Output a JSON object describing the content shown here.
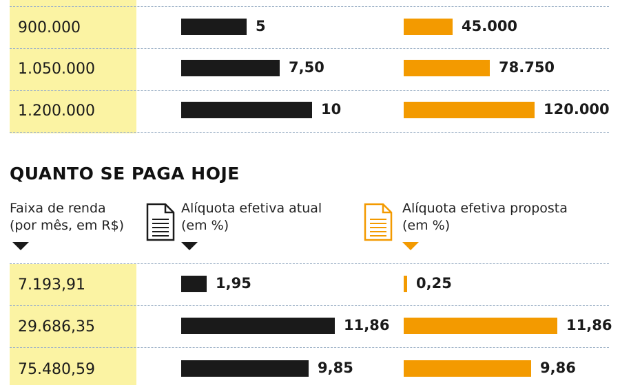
{
  "colors": {
    "atual": "#1a1a1a",
    "proposta": "#f39a00",
    "highlight": "#fbf3a3",
    "divider": "#9fb3c8"
  },
  "icons": {
    "atual": "document-icon",
    "proposta": "document-icon"
  },
  "chart_data": [
    {
      "type": "bar",
      "title": "",
      "columns": [
        "",
        "",
        ""
      ],
      "categories": [
        "900.000",
        "1.050.000",
        "1.200.000"
      ],
      "series": [
        {
          "values": [
            5,
            7.5,
            10
          ],
          "labels": [
            "5",
            "7,50",
            "10"
          ]
        },
        {
          "values": [
            45000,
            78750,
            120000
          ],
          "labels": [
            "45.000",
            "78.750",
            "120.000"
          ]
        }
      ]
    },
    {
      "type": "bar",
      "title": "QUANTO SE PAGA HOJE",
      "columns": [
        {
          "line1": "Faixa de renda",
          "line2": "(por mês, em R$)"
        },
        {
          "line1": "Alíquota efetiva atual",
          "line2": "(em %)"
        },
        {
          "line1": "Alíquota efetiva proposta",
          "line2": "(em %)"
        }
      ],
      "categories": [
        "7.193,91",
        "29.686,35",
        "75.480,59"
      ],
      "series": [
        {
          "name": "Alíquota efetiva atual",
          "values": [
            1.95,
            11.86,
            9.85
          ],
          "labels": [
            "1,95",
            "11,86",
            "9,85"
          ]
        },
        {
          "name": "Alíquota efetiva proposta",
          "values": [
            0.25,
            11.86,
            9.86
          ],
          "labels": [
            "0,25",
            "11,86",
            "9,86"
          ]
        }
      ]
    }
  ]
}
